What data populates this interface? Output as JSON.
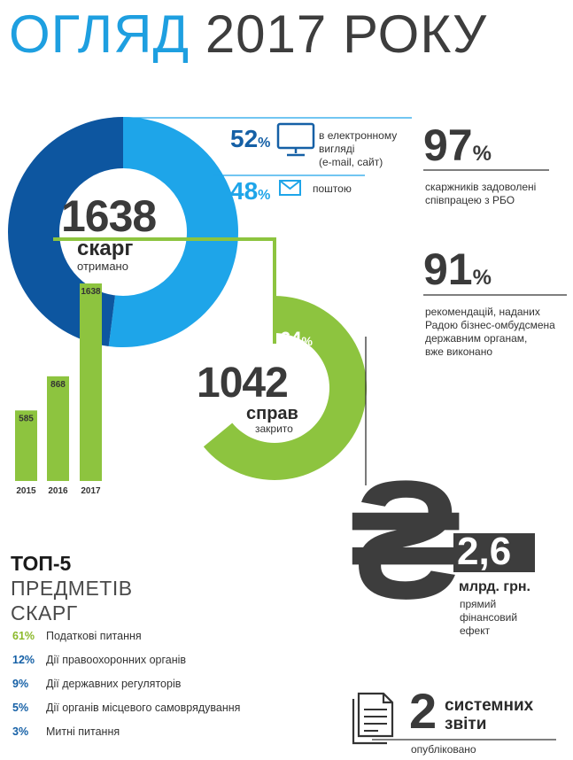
{
  "title_part1": "ОГЛЯД",
  "title_part2": "2017 РОКУ",
  "complaints": {
    "total": "1638",
    "unit": "скарг",
    "sub": "отримано",
    "electronic_pct": "52",
    "electronic_label_l1": "в електронному",
    "electronic_label_l2": "вигляді",
    "electronic_label_l3": "(e-mail, сайт)",
    "post_pct": "48",
    "post_label": "поштою",
    "pct_sign": "%",
    "colors": {
      "electronic": "#1ea5e9",
      "post": "#0d56a0"
    },
    "shares": [
      52,
      48
    ]
  },
  "cases": {
    "total": "1042",
    "unit": "справ",
    "sub": "закрито",
    "pct": "64",
    "pct_sign": "%",
    "share": 64,
    "color": "#8dc43f"
  },
  "stats": [
    {
      "value": "97",
      "sign": "%",
      "l1": "скаржників задоволені",
      "l2": "співпрацею з РБО"
    },
    {
      "value": "91",
      "sign": "%",
      "l1": "рекомендацій, наданих",
      "l2": "Радою бізнес-омбудсмена",
      "l3": "державним органам,",
      "l4": "вже виконано"
    }
  ],
  "money": {
    "symbol": "₴",
    "value": "2,6",
    "unit": "млрд. грн.",
    "l1": "прямий",
    "l2": "фінансовий",
    "l3": "ефект"
  },
  "reports": {
    "value": "2",
    "l1": "системних",
    "l2": "звіти",
    "sub": "опубліковано"
  },
  "top5": {
    "title_bold": "ТОП-5",
    "title_l2": "ПРЕДМЕТІВ",
    "title_l3": "СКАРГ",
    "items": [
      {
        "pct": "61%",
        "label": "Податкові питання"
      },
      {
        "pct": "12%",
        "label": "Дії правоохоронних органів"
      },
      {
        "pct": "9%",
        "label": "Дії державних регуляторів"
      },
      {
        "pct": "5%",
        "label": "Дії органів місцевого самоврядування"
      },
      {
        "pct": "3%",
        "label": "Митні питання"
      }
    ]
  },
  "chart_data": [
    {
      "type": "bar",
      "categories": [
        "2015",
        "2016",
        "2017"
      ],
      "values": [
        585,
        868,
        1638
      ],
      "value_labels": [
        "585",
        "868",
        "1638"
      ],
      "ylim": [
        0,
        1638
      ]
    },
    {
      "type": "pie",
      "categories": [
        "в електронному вигляді (e-mail, сайт)",
        "поштою"
      ],
      "values": [
        52,
        48
      ]
    },
    {
      "type": "pie",
      "categories": [
        "закрито"
      ],
      "values": [
        64
      ]
    }
  ]
}
